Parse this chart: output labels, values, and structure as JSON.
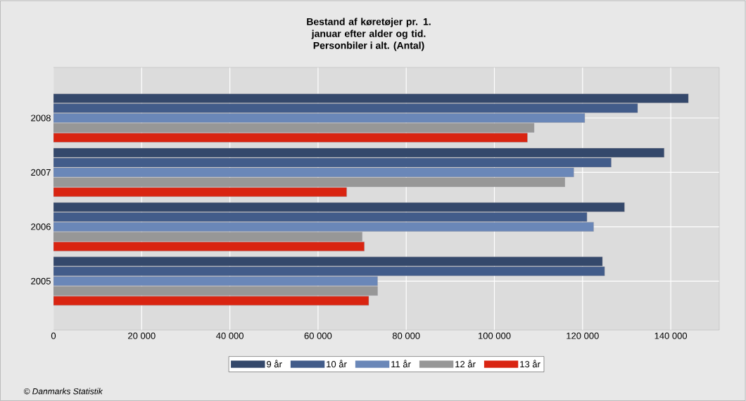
{
  "chart_data": {
    "type": "bar",
    "orientation": "horizontal",
    "title": "Bestand af køretøjer pr. 1. januar efter alder og tid.",
    "subtitle": "Personbiler i alt. (Antal)",
    "categories": [
      "2008",
      "2007",
      "2006",
      "2005"
    ],
    "series": [
      {
        "name": "9 år",
        "color": "#34486b",
        "values": [
          144000,
          138500,
          129500,
          124500
        ]
      },
      {
        "name": "10 år",
        "color": "#425c8a",
        "values": [
          132500,
          126500,
          121000,
          125000
        ]
      },
      {
        "name": "11 år",
        "color": "#6a87b8",
        "values": [
          120500,
          118000,
          122500,
          73500
        ]
      },
      {
        "name": "12 år",
        "color": "#979797",
        "values": [
          109000,
          116000,
          70000,
          73500
        ]
      },
      {
        "name": "13 år",
        "color": "#d92411",
        "values": [
          107500,
          66500,
          70500,
          71500
        ]
      }
    ],
    "xlim": [
      0,
      151000
    ],
    "xticks": [
      0,
      {
        "value": 20000,
        "label": "20 000"
      },
      {
        "value": 40000,
        "label": "40 000"
      },
      {
        "value": 60000,
        "label": "60 000"
      },
      {
        "value": 80000,
        "label": "80 000"
      },
      {
        "value": 100000,
        "label": "100 000"
      },
      {
        "value": 120000,
        "label": "120 000"
      },
      {
        "value": 140000,
        "label": "140 000"
      }
    ],
    "grid": true,
    "legend": "bottom",
    "annotations": [
      "© Danmarks Statistik"
    ]
  }
}
